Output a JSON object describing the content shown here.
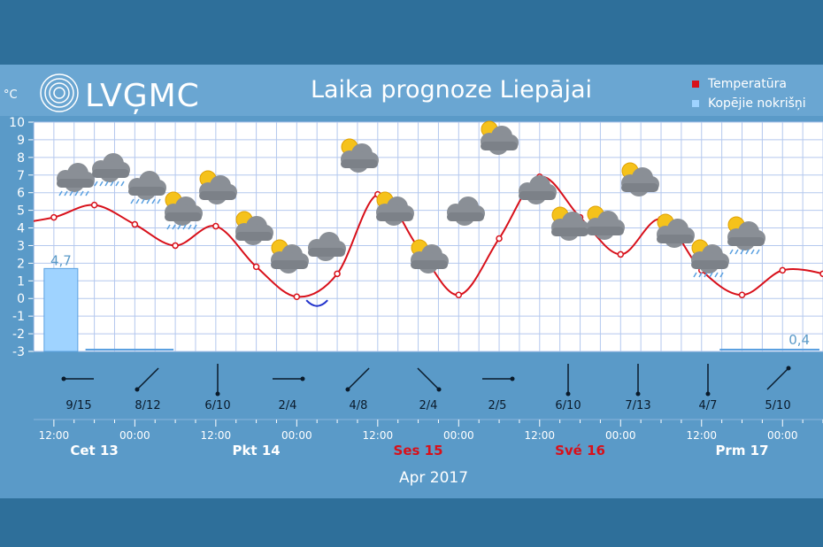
{
  "brand": {
    "logo_text": "LVĢMC"
  },
  "title": "Laika prognoze Liepājai",
  "legend": [
    {
      "name": "Temperatūra",
      "color": "#d8101a"
    },
    {
      "name": "Kopējie nokrišņi",
      "color": "#9fd3ff"
    }
  ],
  "y_unit": "°C",
  "month": "Apr 2017",
  "days": [
    {
      "label": "Cet 13",
      "color": "#ffffff"
    },
    {
      "label": "Pkt 14",
      "color": "#ffffff"
    },
    {
      "label": "Ses 15",
      "color": "#d8101a"
    },
    {
      "label": "Své 16",
      "color": "#d8101a"
    },
    {
      "label": "Prm 17",
      "color": "#ffffff"
    }
  ],
  "colors": {
    "page": "#2e6f9a",
    "band": "#5a9ac8",
    "plot": "#ffffff",
    "grid": "#b4c8ee",
    "temperature": "#d8101a",
    "below_zero": "#2233cc",
    "precip": "#9fd3ff"
  },
  "chart_data": {
    "type": "line",
    "title": "Laika prognoze Liepājai",
    "ylabel": "°C",
    "ylim": [
      -3,
      10
    ],
    "y_ticks": [
      10,
      9,
      8,
      7,
      6,
      5,
      4,
      3,
      2,
      1,
      0,
      -1,
      -2,
      -3
    ],
    "x_ticks": [
      "12:00",
      "00:00",
      "12:00",
      "00:00",
      "12:00",
      "00:00",
      "12:00",
      "00:00",
      "12:00",
      "00:00",
      "12:00"
    ],
    "x_hours_range": [
      -3,
      114
    ],
    "series": [
      {
        "name": "Temperatūra",
        "x_hours": [
          0,
          6,
          12,
          18,
          24,
          30,
          36,
          42,
          48,
          54,
          60,
          66,
          72,
          78,
          84,
          90,
          96,
          102,
          108,
          114
        ],
        "values": [
          4.6,
          5.3,
          4.2,
          3.0,
          4.1,
          1.8,
          0.1,
          1.4,
          5.9,
          2.9,
          0.2,
          3.4,
          6.9,
          4.6,
          2.5,
          4.5,
          1.6,
          0.2,
          1.6,
          1.4
        ]
      },
      {
        "name": "Kopējie nokrišņi",
        "type": "bar",
        "x_hours": [
          0
        ],
        "values": [
          4.7
        ],
        "labels": [
          "4,7"
        ]
      }
    ],
    "annotations": [
      "4,7",
      "0,4"
    ],
    "wind": [
      "9/15",
      "8/12",
      "6/10",
      "2/4",
      "4/8",
      "2/4",
      "2/5",
      "6/10",
      "7/13",
      "4/7",
      "5/10"
    ],
    "weather_icons": [
      "rain-cloud-icon",
      "rain-cloud-icon",
      "rain-cloud-icon",
      "sun-rain-cloud-icon",
      "partly-sunny-icon",
      "partly-sunny-icon",
      "partly-sunny-icon",
      "cloud-icon",
      "partly-sunny-icon",
      "partly-sunny-icon",
      "partly-sunny-icon",
      "cloud-icon",
      "partly-sunny-icon",
      "cloud-icon",
      "partly-sunny-icon",
      "partly-sunny-icon",
      "partly-sunny-icon",
      "partly-sunny-icon",
      "sun-snow-cloud-icon",
      "sun-snow-cloud-icon"
    ]
  }
}
